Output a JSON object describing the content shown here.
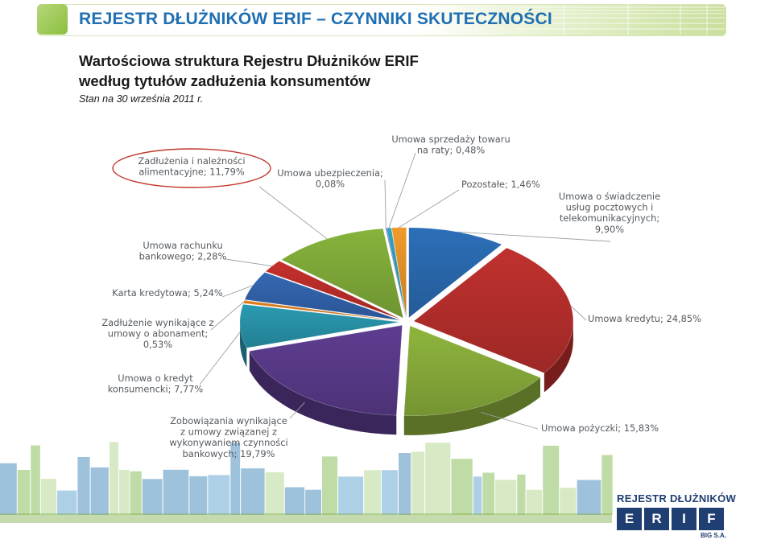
{
  "header": {
    "title": "REJESTR DŁUŻNIKÓW ERIF – CZYNNIKI SKUTECZNOŚCI"
  },
  "subtitle_line1": "Wartościowa struktura Rejestru Dłużników ERIF",
  "subtitle_line2": "według tytułów zadłużenia konsumentów",
  "date_text": "Stan na 30 września 2011 r.",
  "chart_data": {
    "type": "pie",
    "style": "3d-exploded",
    "slices": [
      {
        "label": [
          "Umowa o świadczenie",
          "usług pocztowych i",
          "telekomunikacyjnych;",
          "9,90%"
        ],
        "value": 9.9,
        "color": "#2c6fb8"
      },
      {
        "label": [
          "Umowa kredytu; 24,85%"
        ],
        "value": 24.85,
        "color": "#c0312e"
      },
      {
        "label": [
          "Umowa pożyczki; 15,83%"
        ],
        "value": 15.83,
        "color": "#8fb53d"
      },
      {
        "label": [
          "Zobowiązania wynikające",
          "z umowy związanej z",
          "wykonywaniem czynności",
          "bankowych; 19,79%"
        ],
        "value": 19.79,
        "color": "#5e3d91"
      },
      {
        "label": [
          "Umowa o kredyt",
          "konsumencki; 7,77%"
        ],
        "value": 7.77,
        "color": "#2b9bb2"
      },
      {
        "label": [
          "Zadłużenie wynikające z",
          "umowy o abonament;",
          "0,53%"
        ],
        "value": 0.53,
        "color": "#e3821d"
      },
      {
        "label": [
          "Karta kredytowa; 5,24%"
        ],
        "value": 5.24,
        "color": "#3568b4"
      },
      {
        "label": [
          "Umowa rachunku",
          "bankowego; 2,28%"
        ],
        "value": 2.28,
        "color": "#c5302c"
      },
      {
        "label": [
          "Zadłużenia i należności",
          "alimentacyjne; 11,79%"
        ],
        "value": 11.79,
        "color": "#86b43c",
        "highlighted": true
      },
      {
        "label": [
          "Umowa ubezpieczenia;",
          "0,08%"
        ],
        "value": 0.08,
        "color": "#6a4a9c"
      },
      {
        "label": [
          "Umowa sprzedaży towaru",
          "na raty; 0,48%"
        ],
        "value": 0.48,
        "color": "#31a3c0"
      },
      {
        "label": [
          "Pozostałe; 1,46%"
        ],
        "value": 1.46,
        "color": "#f09a2b"
      }
    ],
    "highlight_color": "#c0392b"
  },
  "logo": {
    "top_text": "REJESTR DŁUŻNIKÓW",
    "letters": [
      "E",
      "R",
      "I",
      "F"
    ],
    "bottom_text": "BIG S.A."
  },
  "colors": {
    "header_title": "#1f6fb2",
    "header_accent": "#8cbf3f",
    "logo": "#1f3e72",
    "skyline": [
      "#4f8fc0",
      "#6aa9d3",
      "#8bbf5c",
      "#b8d896"
    ]
  }
}
